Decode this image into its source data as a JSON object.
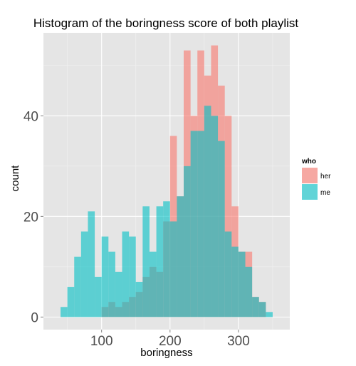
{
  "chart_data": {
    "type": "histogram",
    "title": "Histogram of the boringness score of both playlist",
    "xlabel": "boringness",
    "ylabel": "count",
    "xlim": [
      15,
      375
    ],
    "ylim": [
      -2.5,
      56.5
    ],
    "xticks": [
      100,
      200,
      300
    ],
    "yticks": [
      0,
      20,
      40
    ],
    "bin_width": 10,
    "grid": true,
    "legend": {
      "title": "who",
      "position": "right"
    },
    "series": [
      {
        "name": "her",
        "color": "#F8766D",
        "bins": [
          {
            "x0": 100,
            "x1": 110,
            "count": 2
          },
          {
            "x0": 110,
            "x1": 120,
            "count": 3
          },
          {
            "x0": 120,
            "x1": 130,
            "count": 2
          },
          {
            "x0": 130,
            "x1": 140,
            "count": 3
          },
          {
            "x0": 140,
            "x1": 150,
            "count": 4
          },
          {
            "x0": 150,
            "x1": 160,
            "count": 5
          },
          {
            "x0": 160,
            "x1": 170,
            "count": 8
          },
          {
            "x0": 170,
            "x1": 180,
            "count": 10
          },
          {
            "x0": 180,
            "x1": 190,
            "count": 9
          },
          {
            "x0": 190,
            "x1": 200,
            "count": 19
          },
          {
            "x0": 200,
            "x1": 210,
            "count": 36
          },
          {
            "x0": 210,
            "x1": 220,
            "count": 24
          },
          {
            "x0": 220,
            "x1": 230,
            "count": 53
          },
          {
            "x0": 230,
            "x1": 240,
            "count": 40
          },
          {
            "x0": 240,
            "x1": 250,
            "count": 53
          },
          {
            "x0": 250,
            "x1": 260,
            "count": 48
          },
          {
            "x0": 260,
            "x1": 270,
            "count": 54
          },
          {
            "x0": 270,
            "x1": 280,
            "count": 46
          },
          {
            "x0": 280,
            "x1": 290,
            "count": 40
          },
          {
            "x0": 290,
            "x1": 300,
            "count": 22
          },
          {
            "x0": 300,
            "x1": 310,
            "count": 13
          },
          {
            "x0": 310,
            "x1": 320,
            "count": 13
          },
          {
            "x0": 320,
            "x1": 330,
            "count": 4
          },
          {
            "x0": 330,
            "x1": 340,
            "count": 3
          }
        ]
      },
      {
        "name": "me",
        "color": "#00BFC4",
        "bins": [
          {
            "x0": 40,
            "x1": 50,
            "count": 2
          },
          {
            "x0": 50,
            "x1": 60,
            "count": 6
          },
          {
            "x0": 60,
            "x1": 70,
            "count": 12
          },
          {
            "x0": 70,
            "x1": 80,
            "count": 17
          },
          {
            "x0": 80,
            "x1": 90,
            "count": 21
          },
          {
            "x0": 90,
            "x1": 100,
            "count": 8
          },
          {
            "x0": 100,
            "x1": 110,
            "count": 16
          },
          {
            "x0": 110,
            "x1": 120,
            "count": 13
          },
          {
            "x0": 120,
            "x1": 130,
            "count": 9
          },
          {
            "x0": 130,
            "x1": 140,
            "count": 17
          },
          {
            "x0": 140,
            "x1": 150,
            "count": 16
          },
          {
            "x0": 150,
            "x1": 160,
            "count": 7
          },
          {
            "x0": 160,
            "x1": 170,
            "count": 22
          },
          {
            "x0": 170,
            "x1": 180,
            "count": 13
          },
          {
            "x0": 180,
            "x1": 190,
            "count": 22
          },
          {
            "x0": 190,
            "x1": 200,
            "count": 23
          },
          {
            "x0": 200,
            "x1": 210,
            "count": 19
          },
          {
            "x0": 210,
            "x1": 220,
            "count": 24
          },
          {
            "x0": 220,
            "x1": 230,
            "count": 30
          },
          {
            "x0": 230,
            "x1": 240,
            "count": 37
          },
          {
            "x0": 240,
            "x1": 250,
            "count": 37
          },
          {
            "x0": 250,
            "x1": 260,
            "count": 42
          },
          {
            "x0": 260,
            "x1": 270,
            "count": 40
          },
          {
            "x0": 270,
            "x1": 280,
            "count": 35
          },
          {
            "x0": 280,
            "x1": 290,
            "count": 17
          },
          {
            "x0": 290,
            "x1": 300,
            "count": 14
          },
          {
            "x0": 300,
            "x1": 310,
            "count": 13
          },
          {
            "x0": 310,
            "x1": 320,
            "count": 10
          },
          {
            "x0": 320,
            "x1": 330,
            "count": 4
          },
          {
            "x0": 330,
            "x1": 340,
            "count": 3
          },
          {
            "x0": 340,
            "x1": 350,
            "count": 1
          }
        ]
      }
    ]
  },
  "colors": {
    "panel_background": "#E5E5E5",
    "grid_major": "#FFFFFF",
    "grid_minor": "#F2F2F2",
    "legend_key_background": "#F2F2F2"
  }
}
